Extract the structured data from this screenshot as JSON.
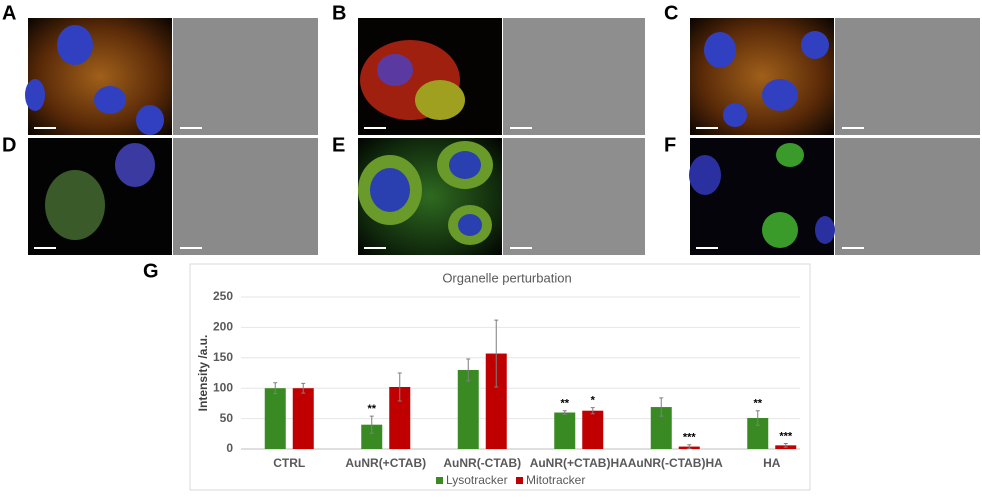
{
  "panel_labels": [
    "A",
    "B",
    "C",
    "D",
    "E",
    "F",
    "G"
  ],
  "chart_data": {
    "type": "bar",
    "title": "Organelle perturbation",
    "y_label": "Intensity /a.u.",
    "categories": [
      "CTRL",
      "AuNR(+CTAB)",
      "AuNR(-CTAB)",
      "AuNR(+CTAB)HA",
      "AuNR(-CTAB)HA",
      "HA"
    ],
    "series": [
      {
        "name": "Lysotracker",
        "color": "#3a8a23",
        "values": [
          100,
          40,
          130,
          60,
          69,
          51
        ],
        "errors": [
          9,
          14,
          18,
          3,
          15,
          12
        ],
        "annotations": [
          null,
          "**",
          null,
          "**",
          null,
          "**"
        ]
      },
      {
        "name": "Mitotracker",
        "color": "#c00000",
        "values": [
          100,
          102,
          157,
          63,
          4,
          6
        ],
        "errors": [
          8,
          23,
          55,
          5,
          3,
          3
        ],
        "annotations": [
          null,
          null,
          null,
          "*",
          "***",
          "***"
        ]
      }
    ],
    "ylim": [
      0,
      250
    ],
    "yticks": [
      0,
      50,
      100,
      150,
      200,
      250
    ],
    "grid": true,
    "legend": "bottom"
  }
}
